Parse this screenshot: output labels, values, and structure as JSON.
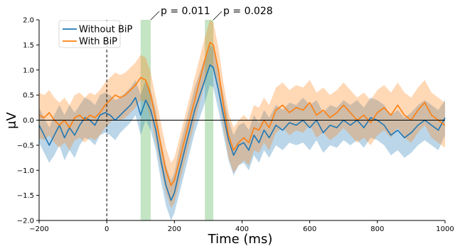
{
  "chart_data": {
    "type": "line",
    "xlabel": "Time (ms)",
    "ylabel": "μV",
    "xlim": [
      -200,
      1000
    ],
    "ylim": [
      -2.0,
      2.0
    ],
    "xticks": [
      -200,
      0,
      200,
      400,
      600,
      800,
      1000
    ],
    "yticks": [
      -2.0,
      -1.5,
      -1.0,
      -0.5,
      0.0,
      0.5,
      1.0,
      1.5,
      2.0
    ],
    "legend_position": "top-left",
    "stimulus_onset_line_x": 0,
    "zero_line": true,
    "significance_windows": [
      {
        "x_start": 100,
        "x_end": 130,
        "label": "p = 0.011"
      },
      {
        "x_start": 290,
        "x_end": 315,
        "label": "p = 0.028"
      }
    ],
    "series": [
      {
        "name": "Without BiP",
        "color": "#1f77b4",
        "band_color": "#1f77b4",
        "x": [
          -200,
          -185,
          -170,
          -155,
          -140,
          -125,
          -110,
          -95,
          -80,
          -65,
          -50,
          -35,
          -20,
          -5,
          10,
          25,
          40,
          55,
          70,
          85,
          100,
          115,
          130,
          145,
          160,
          175,
          190,
          200,
          215,
          230,
          245,
          260,
          275,
          290,
          305,
          315,
          330,
          345,
          360,
          375,
          390,
          405,
          420,
          435,
          450,
          465,
          480,
          500,
          520,
          540,
          560,
          580,
          600,
          620,
          640,
          660,
          680,
          700,
          720,
          740,
          760,
          780,
          800,
          820,
          840,
          860,
          880,
          900,
          920,
          940,
          960,
          980,
          1000
        ],
        "y": [
          -0.1,
          -0.3,
          -0.5,
          -0.3,
          -0.1,
          -0.35,
          -0.15,
          -0.3,
          -0.1,
          0.05,
          0.0,
          -0.1,
          0.1,
          0.15,
          0.1,
          0.0,
          0.1,
          0.2,
          0.3,
          0.45,
          0.1,
          0.4,
          0.2,
          -0.2,
          -0.8,
          -1.3,
          -1.6,
          -1.45,
          -1.0,
          -0.6,
          -0.2,
          0.2,
          0.5,
          0.8,
          1.1,
          1.05,
          0.6,
          0.1,
          -0.4,
          -0.7,
          -0.5,
          -0.45,
          -0.6,
          -0.3,
          -0.45,
          -0.2,
          -0.35,
          -0.1,
          -0.2,
          -0.05,
          -0.1,
          0.0,
          -0.15,
          0.0,
          -0.25,
          -0.1,
          -0.15,
          0.0,
          -0.1,
          0.0,
          -0.15,
          0.05,
          0.0,
          -0.1,
          -0.3,
          -0.2,
          -0.35,
          -0.25,
          -0.1,
          0.0,
          -0.1,
          -0.2,
          0.05
        ],
        "lower": [
          -0.45,
          -0.65,
          -0.85,
          -0.7,
          -0.5,
          -0.8,
          -0.6,
          -0.75,
          -0.5,
          -0.35,
          -0.4,
          -0.5,
          -0.3,
          -0.25,
          -0.3,
          -0.4,
          -0.25,
          -0.15,
          -0.05,
          0.1,
          -0.3,
          0.0,
          -0.2,
          -0.6,
          -1.2,
          -1.7,
          -2.0,
          -1.85,
          -1.45,
          -1.05,
          -0.65,
          -0.25,
          0.05,
          0.35,
          0.7,
          0.65,
          0.2,
          -0.3,
          -0.8,
          -1.1,
          -0.9,
          -0.85,
          -1.0,
          -0.7,
          -0.85,
          -0.6,
          -0.75,
          -0.5,
          -0.6,
          -0.45,
          -0.5,
          -0.45,
          -0.6,
          -0.4,
          -0.65,
          -0.5,
          -0.55,
          -0.4,
          -0.5,
          -0.4,
          -0.55,
          -0.35,
          -0.4,
          -0.5,
          -0.7,
          -0.6,
          -0.75,
          -0.65,
          -0.5,
          -0.4,
          -0.5,
          -0.6,
          -0.3
        ],
        "upper": [
          0.25,
          0.05,
          -0.15,
          0.1,
          0.3,
          0.1,
          0.3,
          0.15,
          0.3,
          0.45,
          0.4,
          0.3,
          0.5,
          0.55,
          0.5,
          0.4,
          0.45,
          0.55,
          0.65,
          0.8,
          0.5,
          0.8,
          0.6,
          0.2,
          -0.4,
          -0.9,
          -1.2,
          -1.05,
          -0.55,
          -0.15,
          0.25,
          0.65,
          0.95,
          1.25,
          1.5,
          1.45,
          1.0,
          0.5,
          0.0,
          -0.3,
          -0.1,
          -0.05,
          -0.2,
          0.1,
          -0.05,
          0.2,
          0.05,
          0.3,
          0.2,
          0.35,
          0.3,
          0.45,
          0.3,
          0.4,
          0.15,
          0.3,
          0.25,
          0.4,
          0.3,
          0.4,
          0.25,
          0.45,
          0.4,
          0.3,
          0.1,
          0.2,
          0.05,
          0.15,
          0.3,
          0.4,
          0.3,
          0.2,
          0.4
        ]
      },
      {
        "name": "With BiP",
        "color": "#ff7f0e",
        "band_color": "#ff7f0e",
        "x": [
          -200,
          -185,
          -170,
          -155,
          -140,
          -125,
          -110,
          -95,
          -80,
          -65,
          -50,
          -35,
          -20,
          -5,
          10,
          25,
          40,
          55,
          70,
          85,
          100,
          115,
          130,
          145,
          160,
          175,
          190,
          200,
          215,
          230,
          245,
          260,
          275,
          290,
          305,
          315,
          330,
          345,
          360,
          375,
          390,
          405,
          420,
          435,
          450,
          465,
          480,
          500,
          520,
          540,
          560,
          580,
          600,
          620,
          640,
          660,
          680,
          700,
          720,
          740,
          760,
          780,
          800,
          820,
          840,
          860,
          880,
          900,
          920,
          940,
          960,
          980,
          1000
        ],
        "y": [
          0.1,
          0.05,
          0.15,
          0.0,
          -0.1,
          0.0,
          -0.15,
          0.05,
          0.1,
          0.0,
          0.1,
          0.05,
          0.15,
          0.3,
          0.4,
          0.5,
          0.45,
          0.5,
          0.6,
          0.7,
          0.85,
          0.8,
          0.5,
          0.0,
          -0.5,
          -1.0,
          -1.3,
          -1.2,
          -0.8,
          -0.4,
          0.0,
          0.4,
          0.8,
          1.2,
          1.55,
          1.5,
          1.0,
          0.3,
          -0.3,
          -0.6,
          -0.45,
          -0.35,
          -0.45,
          -0.15,
          -0.2,
          0.0,
          -0.15,
          0.2,
          0.3,
          0.15,
          0.25,
          0.2,
          0.35,
          0.1,
          0.2,
          0.05,
          0.15,
          0.3,
          0.15,
          0.0,
          0.1,
          -0.05,
          0.15,
          0.25,
          0.1,
          0.3,
          0.1,
          0.0,
          0.2,
          0.35,
          0.1,
          0.0,
          -0.1
        ],
        "lower": [
          -0.35,
          -0.4,
          -0.3,
          -0.45,
          -0.55,
          -0.45,
          -0.6,
          -0.4,
          -0.35,
          -0.45,
          -0.35,
          -0.4,
          -0.3,
          -0.15,
          -0.05,
          0.05,
          0.0,
          0.05,
          0.15,
          0.25,
          0.4,
          0.35,
          0.05,
          -0.45,
          -0.95,
          -1.45,
          -1.75,
          -1.65,
          -1.25,
          -0.85,
          -0.45,
          -0.05,
          0.35,
          0.75,
          1.1,
          1.05,
          0.55,
          -0.15,
          -0.75,
          -1.05,
          -0.9,
          -0.8,
          -0.9,
          -0.6,
          -0.65,
          -0.45,
          -0.6,
          -0.25,
          -0.15,
          -0.3,
          -0.2,
          -0.25,
          -0.1,
          -0.35,
          -0.25,
          -0.4,
          -0.3,
          -0.15,
          -0.3,
          -0.45,
          -0.35,
          -0.5,
          -0.3,
          -0.2,
          -0.35,
          -0.15,
          -0.35,
          -0.45,
          -0.25,
          -0.1,
          -0.35,
          -0.45,
          -0.55
        ],
        "upper": [
          0.55,
          0.5,
          0.6,
          0.45,
          0.35,
          0.45,
          0.3,
          0.5,
          0.55,
          0.45,
          0.55,
          0.5,
          0.6,
          0.75,
          0.85,
          0.95,
          0.9,
          0.95,
          1.05,
          1.15,
          1.3,
          1.25,
          0.95,
          0.45,
          -0.05,
          -0.55,
          -0.85,
          -0.75,
          -0.35,
          0.05,
          0.45,
          0.85,
          1.25,
          1.65,
          2.0,
          1.95,
          1.45,
          0.75,
          0.15,
          -0.15,
          0.0,
          0.1,
          0.0,
          0.3,
          0.25,
          0.45,
          0.3,
          0.65,
          0.75,
          0.6,
          0.7,
          0.65,
          0.8,
          0.55,
          0.65,
          0.5,
          0.6,
          0.75,
          0.6,
          0.45,
          0.55,
          0.4,
          0.6,
          0.7,
          0.55,
          0.75,
          0.55,
          0.45,
          0.65,
          0.8,
          0.55,
          0.45,
          0.35
        ]
      }
    ]
  }
}
